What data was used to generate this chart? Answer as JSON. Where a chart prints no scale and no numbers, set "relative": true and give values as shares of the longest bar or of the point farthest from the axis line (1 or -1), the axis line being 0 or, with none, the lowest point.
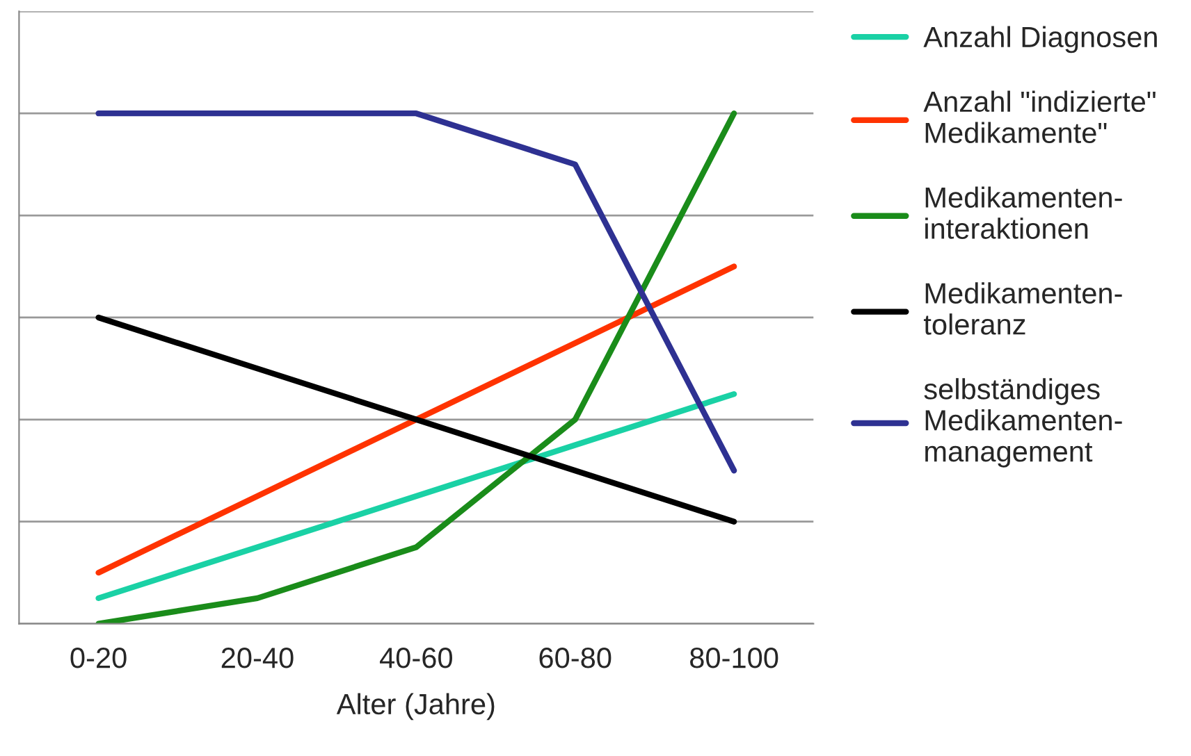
{
  "chart_data": {
    "type": "line",
    "xlabel": "Alter (Jahre)",
    "categories": [
      "0-20",
      "20-40",
      "40-60",
      "60-80",
      "80-100"
    ],
    "relative": true,
    "grid": "y",
    "legend": "right",
    "marker": "none",
    "line_style": "solid",
    "series": [
      {
        "name": "Anzahl Diagnosen",
        "color": "#1ad1a5",
        "values": [
          0.05,
          0.15,
          0.25,
          0.35,
          0.45
        ]
      },
      {
        "name": "Anzahl \"indizierte\"\nMedikamente\"",
        "color": "#ff3300",
        "values": [
          0.1,
          0.25,
          0.4,
          0.55,
          0.7
        ]
      },
      {
        "name": "Medikamenten-\ninteraktionen",
        "color": "#1a8c1a",
        "values": [
          0,
          0.05,
          0.15,
          0.4,
          1
        ]
      },
      {
        "name": "Medikamenten-\ntoleranz",
        "color": "#000000",
        "values": [
          0.6,
          0.5,
          0.4,
          0.3,
          0.2
        ]
      },
      {
        "name": "selbständiges\nMedikamenten-\nmanagement",
        "color": "#2e3192",
        "values": [
          1,
          1,
          1,
          0.9,
          0.3
        ]
      }
    ]
  }
}
